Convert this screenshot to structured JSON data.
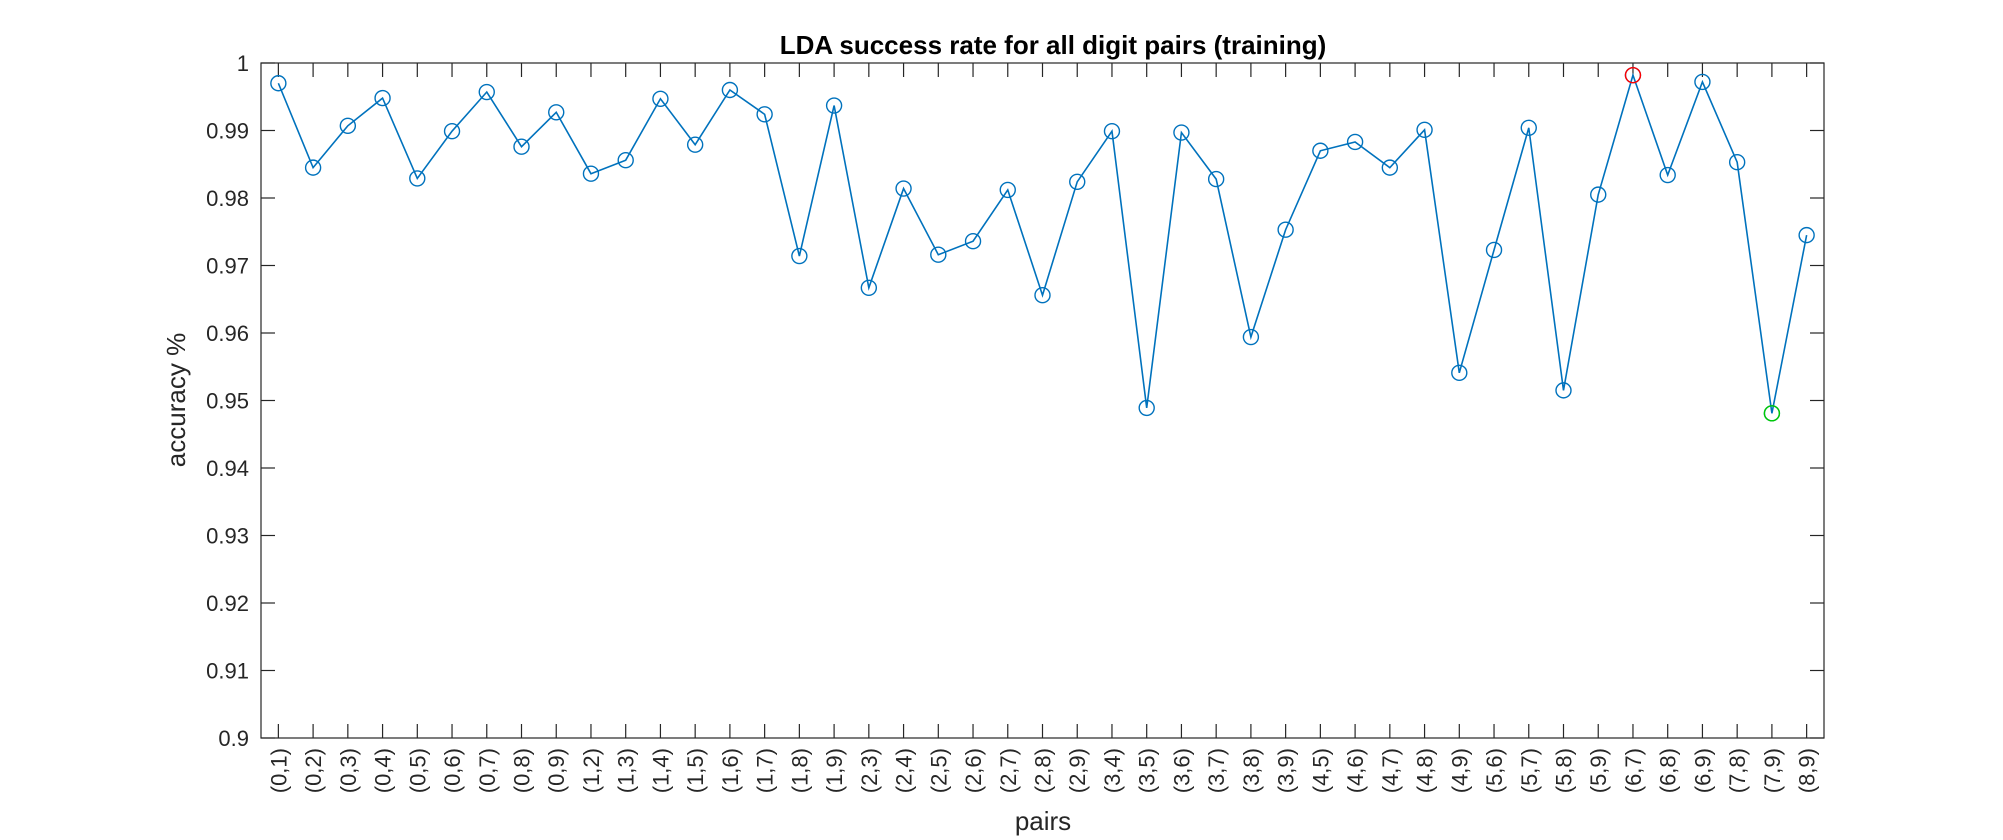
{
  "chart_data": {
    "type": "line",
    "title": "LDA success rate for all digit pairs (training)",
    "xlabel": "pairs",
    "ylabel": "accuracy %",
    "ylim": [
      0.9,
      1.0
    ],
    "yticks": [
      "0.9",
      "0.91",
      "0.92",
      "0.93",
      "0.94",
      "0.95",
      "0.96",
      "0.97",
      "0.98",
      "0.99",
      "1"
    ],
    "grid": false,
    "categories": [
      "(0,1)",
      "(0,2)",
      "(0,3)",
      "(0,4)",
      "(0,5)",
      "(0,6)",
      "(0,7)",
      "(0,8)",
      "(0,9)",
      "(1,2)",
      "(1,3)",
      "(1,4)",
      "(1,5)",
      "(1,6)",
      "(1,7)",
      "(1,8)",
      "(1,9)",
      "(2,3)",
      "(2,4)",
      "(2,5)",
      "(2,6)",
      "(2,7)",
      "(2,8)",
      "(2,9)",
      "(3,4)",
      "(3,5)",
      "(3,6)",
      "(3,7)",
      "(3,8)",
      "(3,9)",
      "(4,5)",
      "(4,6)",
      "(4,7)",
      "(4,8)",
      "(4,9)",
      "(5,6)",
      "(5,7)",
      "(5,8)",
      "(5,9)",
      "(6,7)",
      "(6,8)",
      "(6,9)",
      "(7,8)",
      "(7,9)",
      "(8,9)"
    ],
    "series": [
      {
        "values": [
          0.997,
          0.9845,
          0.9907,
          0.9948,
          0.9829,
          0.9899,
          0.9957,
          0.9876,
          0.9927,
          0.9836,
          0.9856,
          0.9947,
          0.9879,
          0.996,
          0.9924,
          0.9714,
          0.9937,
          0.9667,
          0.9814,
          0.9716,
          0.9736,
          0.9812,
          0.9656,
          0.9824,
          0.9899,
          0.9489,
          0.9897,
          0.9828,
          0.9594,
          0.9753,
          0.987,
          0.9883,
          0.9845,
          0.9901,
          0.9541,
          0.9723,
          0.9904,
          0.9515,
          0.9805,
          0.9982,
          0.9834,
          0.9972,
          0.9853,
          0.9481,
          0.9745
        ]
      }
    ],
    "highlights": [
      {
        "category": "(6,7)",
        "value": 0.9982,
        "color": "#ff0000",
        "meaning": "max"
      },
      {
        "category": "(7,9)",
        "value": 0.9481,
        "color": "#00cc00",
        "meaning": "min"
      }
    ],
    "colors": {
      "series": "#0072bd",
      "axes": "#262626"
    }
  }
}
